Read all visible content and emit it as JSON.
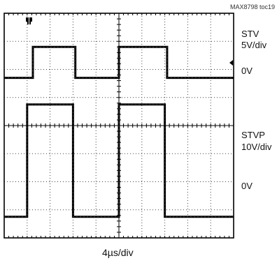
{
  "figure_id": "MAX8798 toc19",
  "x_scale": "4µs/div",
  "ground_label": "0V",
  "trigger_icon": "trigger-marker-icon",
  "chart_data": {
    "type": "line",
    "title": "",
    "xlabel": "4µs/div",
    "grid": true,
    "divisions": {
      "x": 10,
      "y": 8
    },
    "series": [
      {
        "name": "STV",
        "scale": "5V/div",
        "unit": "V",
        "ground_div": 2.3,
        "x": [
          0,
          1.25,
          1.25,
          3.1,
          3.1,
          5.0,
          5.0,
          7.1,
          7.1,
          10
        ],
        "y": [
          0,
          0,
          5.5,
          5.5,
          0,
          0,
          5.5,
          5.5,
          0,
          0
        ]
      },
      {
        "name": "STVP",
        "scale": "10V/div",
        "unit": "V",
        "ground_div": 6.25,
        "x": [
          0,
          1.0,
          1.0,
          3.0,
          3.0,
          5.0,
          5.0,
          7.0,
          7.0,
          10
        ],
        "y": [
          -10,
          -10,
          30,
          30,
          -10,
          -10,
          30,
          30,
          -10,
          -10
        ]
      }
    ]
  }
}
